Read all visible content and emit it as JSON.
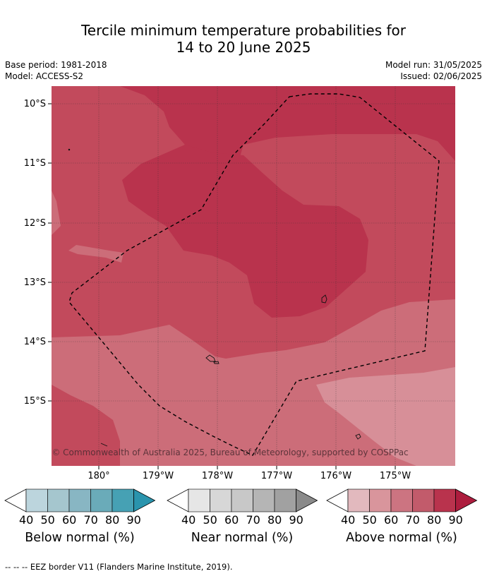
{
  "title_line1": "Tercile minimum temperature probabilities for",
  "title_line2": "14 to 20 June 2025",
  "meta_left": {
    "base_period": "Base period: 1981-2018",
    "model": "Model: ACCESS-S2"
  },
  "meta_right": {
    "model_run": "Model run: 31/05/2025",
    "issued": "Issued: 02/06/2025"
  },
  "lat_labels": [
    "10°S",
    "11°S",
    "12°S",
    "13°S",
    "14°S",
    "15°S"
  ],
  "lon_labels": [
    "180°",
    "179°W",
    "178°W",
    "177°W",
    "176°W",
    "175°W"
  ],
  "copyright": "© Commonwealth of Australia 2025, Bureau of Meteorology, supported by COSPPac",
  "colorbars": [
    {
      "label": "Below normal (%)",
      "ticks": [
        "40",
        "50",
        "60",
        "70",
        "80",
        "90"
      ],
      "colors": [
        "#bcd5dd",
        "#a5c6ce",
        "#88b6c3",
        "#6aabb9",
        "#46a1b4",
        "#2a94ad"
      ]
    },
    {
      "label": "Near normal (%)",
      "ticks": [
        "40",
        "50",
        "60",
        "70",
        "80",
        "90"
      ],
      "colors": [
        "#e6e6e6",
        "#d7d7d7",
        "#c8c8c8",
        "#b5b5b5",
        "#a1a1a1",
        "#8a8a8a"
      ]
    },
    {
      "label": "Above normal (%)",
      "ticks": [
        "40",
        "50",
        "60",
        "70",
        "80",
        "90"
      ],
      "colors": [
        "#e2b9be",
        "#d9959c",
        "#cc7481",
        "#c25b6b",
        "#b9334d",
        "#ad1d3e"
      ]
    }
  ],
  "footnote": "--  --  -- EEZ border V11 (Flanders Marine Institute, 2019)."
}
